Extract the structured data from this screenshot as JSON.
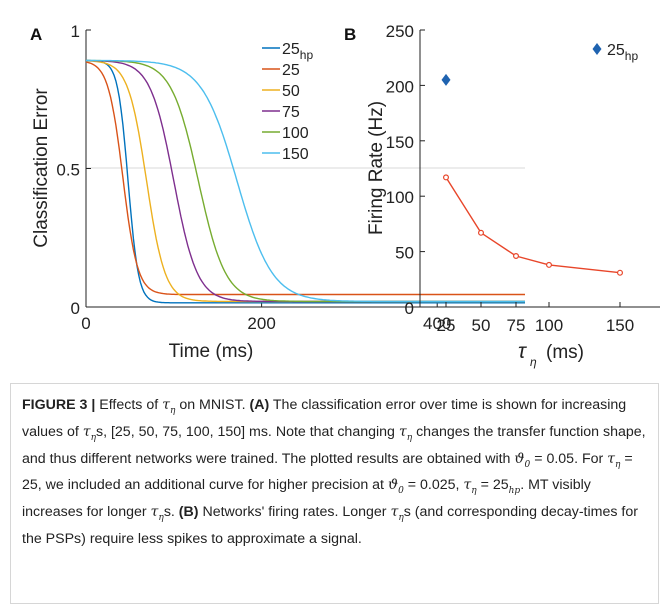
{
  "colors": {
    "c25hp": "#0072BD",
    "c25": "#D95319",
    "c50": "#EDB120",
    "c75": "#7E2F8E",
    "c100": "#77AC30",
    "c150": "#4DBEEE",
    "firing": "#E8462A",
    "diamond": "#1f63b0"
  },
  "chart_data": [
    {
      "type": "line",
      "panel_label": "A",
      "xlabel": "Time (ms)",
      "ylabel": "Classification Error",
      "xlim": [
        0,
        500
      ],
      "ylim": [
        0,
        1
      ],
      "xticks": [
        "0",
        "200",
        "400"
      ],
      "yticks": [
        "0",
        "0.5",
        "1"
      ],
      "grid": "horizontal at y=0.5",
      "legend_position": "top-right",
      "legend": [
        {
          "label": "25",
          "sub": "hp"
        },
        {
          "label": "25",
          "sub": ""
        },
        {
          "label": "50",
          "sub": ""
        },
        {
          "label": "75",
          "sub": ""
        },
        {
          "label": "100",
          "sub": ""
        },
        {
          "label": "150",
          "sub": ""
        }
      ],
      "series": [
        {
          "name": "25hp",
          "color_key": "c25hp",
          "start": 0.89,
          "final": 0.015,
          "t_mid": 48,
          "k": 0.17
        },
        {
          "name": "25",
          "color_key": "c25",
          "start": 0.89,
          "final": 0.045,
          "t_mid": 42,
          "k": 0.12
        },
        {
          "name": "50",
          "color_key": "c50",
          "start": 0.89,
          "final": 0.02,
          "t_mid": 69,
          "k": 0.095
        },
        {
          "name": "75",
          "color_key": "c75",
          "start": 0.89,
          "final": 0.02,
          "t_mid": 100,
          "k": 0.075
        },
        {
          "name": "100",
          "color_key": "c100",
          "start": 0.89,
          "final": 0.02,
          "t_mid": 128,
          "k": 0.065
        },
        {
          "name": "150",
          "color_key": "c150",
          "start": 0.89,
          "final": 0.02,
          "t_mid": 172,
          "k": 0.05
        }
      ]
    },
    {
      "type": "line",
      "panel_label": "B",
      "xlabel": "τη (ms)",
      "ylabel": "Firing Rate (Hz)",
      "ylim": [
        0,
        250
      ],
      "xticks": [
        "25",
        "50",
        "75",
        "100",
        "150"
      ],
      "yticks": [
        "0",
        "50",
        "100",
        "150",
        "200",
        "250"
      ],
      "categories": [
        "25",
        "50",
        "75",
        "100",
        "150"
      ],
      "series": [
        {
          "name": "Firing rate",
          "values": [
            117,
            67,
            46,
            38,
            31
          ]
        }
      ],
      "extra_point": {
        "category": "25",
        "value": 205,
        "label": "25",
        "sub": "hp",
        "marker": "diamond"
      }
    }
  ],
  "caption": {
    "label": "FIGURE 3 |",
    "text_parts": {
      "p1": " Effects of ",
      "p2": " on MNIST. ",
      "labelA": "(A)",
      "p3": " The classification error over time is shown for increasing values of ",
      "p4": "s, [25, 50, 75, 100, 150] ms. Note that changing ",
      "p5": " changes the transfer function shape, and thus different networks were trained. The plotted results are obtained with ",
      "p6": " = 0.05. For ",
      "p7": " = 25, we included an additional curve for higher precision at ",
      "p8": " = 0.025, ",
      "p9": " = 25",
      "p9sub": "hp",
      "p10": ". MT visibly increases for longer ",
      "p11": "s. ",
      "labelB": "(B)",
      "p12": " Networks' firing rates. Longer ",
      "p13": "s (and corresponding decay-times for the PSPs) require less spikes to approximate a signal."
    },
    "symbols": {
      "tau": "τ",
      "eta": "η",
      "theta": "ϑ",
      "zero": "0"
    }
  }
}
